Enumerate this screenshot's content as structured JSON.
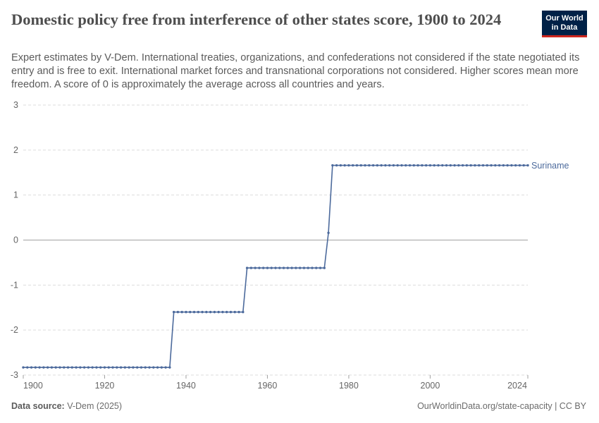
{
  "header": {
    "title": "Domestic policy free from interference of other states score, 1900 to 2024",
    "subtitle": "Expert estimates by V-Dem. International treaties, organizations, and confederations not considered if the state negotiated its entry and is free to exit. International market forces and transnational corporations not considered. Higher scores mean more freedom. A score of 0 is approximately the average across all countries and years.",
    "logo_line1": "Our World",
    "logo_line2": "in Data"
  },
  "footer": {
    "source_label": "Data source:",
    "source_value": "V-Dem (2025)",
    "url": "OurWorldinData.org/state-capacity | CC BY"
  },
  "colors": {
    "series": "#4c6a9c",
    "grid": "#dddddd",
    "zero_line": "#a1a1a1",
    "axis_text": "#666666",
    "logo_bg": "#002147",
    "logo_accent": "#ce261e"
  },
  "chart_data": {
    "type": "line",
    "xlim": [
      1900,
      2024
    ],
    "ylim": [
      -3,
      3
    ],
    "x_ticks": [
      "1900",
      "1920",
      "1940",
      "1960",
      "1980",
      "2000",
      "2024"
    ],
    "y_ticks": [
      "3",
      "2",
      "1",
      "0",
      "-1",
      "-2",
      "-3"
    ],
    "grid": "horizontal dashed",
    "series": [
      {
        "name": "Suriname",
        "segments": [
          {
            "from": 1900,
            "to": 1936,
            "value": -2.83
          },
          {
            "from": 1937,
            "to": 1954,
            "value": -1.6
          },
          {
            "from": 1955,
            "to": 1974,
            "value": -0.62
          },
          {
            "from": 1975,
            "to": 1975,
            "value": 0.16
          },
          {
            "from": 1976,
            "to": 2024,
            "value": 1.66
          }
        ]
      }
    ]
  }
}
